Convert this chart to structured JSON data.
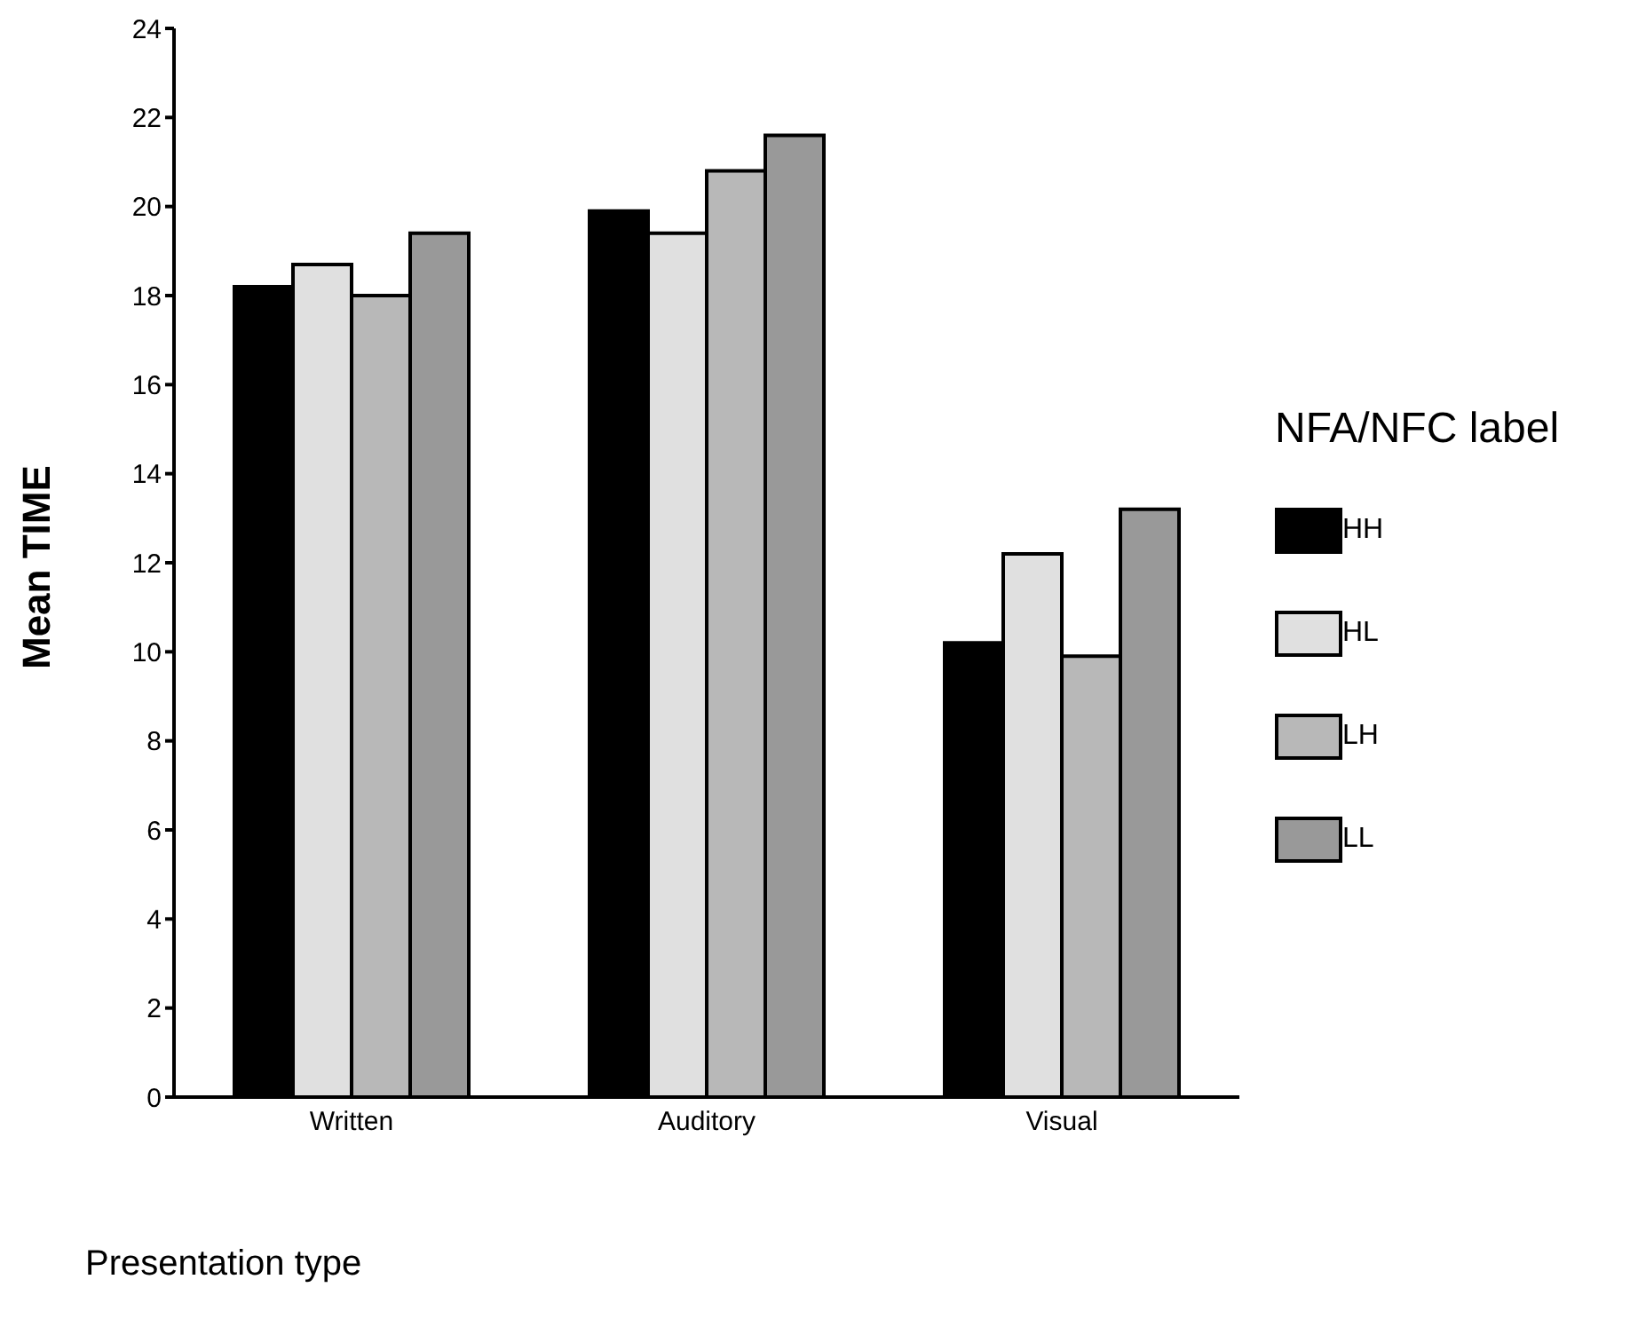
{
  "chart_data": {
    "type": "bar",
    "xlabel": "Presentation type",
    "ylabel": "Mean TIME",
    "legend_title": "NFA/NFC label",
    "categories": [
      "Written",
      "Auditory",
      "Visual"
    ],
    "series": [
      {
        "name": "HH",
        "color": "#000000",
        "values": [
          18.2,
          19.9,
          10.2
        ]
      },
      {
        "name": "HL",
        "color": "#e0e0e0",
        "values": [
          18.7,
          19.4,
          12.2
        ]
      },
      {
        "name": "LH",
        "color": "#b8b8b8",
        "values": [
          18.0,
          20.8,
          9.9
        ]
      },
      {
        "name": "LL",
        "color": "#999999",
        "values": [
          19.4,
          21.6,
          13.2
        ]
      }
    ],
    "ylim": [
      0,
      24
    ],
    "yticks": [
      0,
      2,
      4,
      6,
      8,
      10,
      12,
      14,
      16,
      18,
      20,
      22,
      24
    ],
    "grid": false,
    "legend": "right"
  }
}
